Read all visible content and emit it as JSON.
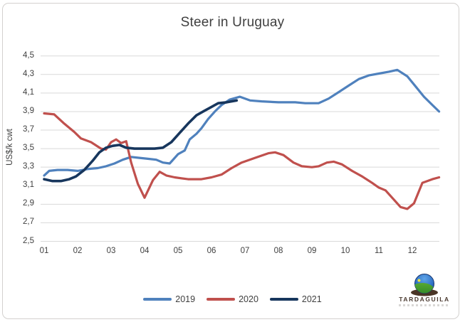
{
  "title": "Steer in Uruguay",
  "y_axis": {
    "title": "US$/k cwt",
    "ticks": [
      {
        "value": 4.5,
        "label": "4,5"
      },
      {
        "value": 4.3,
        "label": "4,3"
      },
      {
        "value": 4.1,
        "label": "4,1"
      },
      {
        "value": 3.9,
        "label": "3,9"
      },
      {
        "value": 3.7,
        "label": "3,7"
      },
      {
        "value": 3.5,
        "label": "3,5"
      },
      {
        "value": 3.3,
        "label": "3,3"
      },
      {
        "value": 3.1,
        "label": "3,1"
      },
      {
        "value": 2.9,
        "label": "2,9"
      },
      {
        "value": 2.7,
        "label": "2,7"
      },
      {
        "value": 2.5,
        "label": "2,5"
      }
    ]
  },
  "x_axis": {
    "ticks": [
      {
        "value": 1,
        "label": "01"
      },
      {
        "value": 2,
        "label": "02"
      },
      {
        "value": 3,
        "label": "03"
      },
      {
        "value": 4,
        "label": "04"
      },
      {
        "value": 5,
        "label": "05"
      },
      {
        "value": 6,
        "label": "06"
      },
      {
        "value": 7,
        "label": "07"
      },
      {
        "value": 8,
        "label": "08"
      },
      {
        "value": 9,
        "label": "09"
      },
      {
        "value": 10,
        "label": "10"
      },
      {
        "value": 11,
        "label": "11"
      },
      {
        "value": 12,
        "label": "12"
      }
    ]
  },
  "legend": [
    {
      "label": "2019",
      "color": "#4F81BD"
    },
    {
      "label": "2020",
      "color": "#C0504D"
    },
    {
      "label": "2021",
      "color": "#17365D"
    }
  ],
  "logo": {
    "name": "TARDAGUILA"
  },
  "colors": {
    "title_text": "#3f3f3f",
    "axis_text": "#3f3f3f",
    "gridline": "#d9d9d9",
    "frame_border": "#d3d1cf",
    "series_2019": "#4F81BD",
    "series_2020": "#C0504D",
    "series_2021": "#17365D"
  },
  "chart_data": {
    "type": "line",
    "title": "Steer in Uruguay",
    "xlabel": "",
    "ylabel": "US$/k cwt",
    "ylim": [
      2.5,
      4.5
    ],
    "xlim": [
      1,
      13
    ],
    "x_unit": "month (01-12), weekly data",
    "grid": "horizontal only",
    "legend_position": "bottom center",
    "series": [
      {
        "name": "2019",
        "color": "#4F81BD",
        "points": [
          [
            1.0,
            3.21
          ],
          [
            1.15,
            3.26
          ],
          [
            1.4,
            3.27
          ],
          [
            1.7,
            3.27
          ],
          [
            2.0,
            3.26
          ],
          [
            2.3,
            3.28
          ],
          [
            2.6,
            3.29
          ],
          [
            2.85,
            3.31
          ],
          [
            3.1,
            3.34
          ],
          [
            3.35,
            3.38
          ],
          [
            3.6,
            3.41
          ],
          [
            3.85,
            3.4
          ],
          [
            4.1,
            3.39
          ],
          [
            4.35,
            3.38
          ],
          [
            4.55,
            3.35
          ],
          [
            4.75,
            3.34
          ],
          [
            5.0,
            3.44
          ],
          [
            5.2,
            3.48
          ],
          [
            5.35,
            3.6
          ],
          [
            5.55,
            3.66
          ],
          [
            5.7,
            3.72
          ],
          [
            5.9,
            3.82
          ],
          [
            6.1,
            3.9
          ],
          [
            6.3,
            3.97
          ],
          [
            6.55,
            4.03
          ],
          [
            6.85,
            4.06
          ],
          [
            7.15,
            4.02
          ],
          [
            7.5,
            4.01
          ],
          [
            8.0,
            4.0
          ],
          [
            8.5,
            4.0
          ],
          [
            8.8,
            3.99
          ],
          [
            9.2,
            3.99
          ],
          [
            9.5,
            4.04
          ],
          [
            9.8,
            4.11
          ],
          [
            10.1,
            4.18
          ],
          [
            10.4,
            4.25
          ],
          [
            10.7,
            4.29
          ],
          [
            11.0,
            4.31
          ],
          [
            11.3,
            4.33
          ],
          [
            11.55,
            4.35
          ],
          [
            11.85,
            4.28
          ],
          [
            12.1,
            4.17
          ],
          [
            12.35,
            4.06
          ],
          [
            12.6,
            3.97
          ],
          [
            12.8,
            3.9
          ]
        ]
      },
      {
        "name": "2020",
        "color": "#C0504D",
        "points": [
          [
            1.0,
            3.88
          ],
          [
            1.3,
            3.87
          ],
          [
            1.6,
            3.77
          ],
          [
            1.9,
            3.68
          ],
          [
            2.1,
            3.61
          ],
          [
            2.4,
            3.57
          ],
          [
            2.7,
            3.5
          ],
          [
            2.85,
            3.49
          ],
          [
            3.0,
            3.57
          ],
          [
            3.15,
            3.6
          ],
          [
            3.3,
            3.56
          ],
          [
            3.45,
            3.58
          ],
          [
            3.6,
            3.35
          ],
          [
            3.8,
            3.12
          ],
          [
            4.0,
            2.97
          ],
          [
            4.25,
            3.16
          ],
          [
            4.45,
            3.25
          ],
          [
            4.65,
            3.21
          ],
          [
            4.9,
            3.19
          ],
          [
            5.3,
            3.17
          ],
          [
            5.7,
            3.17
          ],
          [
            6.0,
            3.19
          ],
          [
            6.3,
            3.22
          ],
          [
            6.6,
            3.29
          ],
          [
            6.9,
            3.35
          ],
          [
            7.3,
            3.4
          ],
          [
            7.7,
            3.45
          ],
          [
            7.9,
            3.46
          ],
          [
            8.15,
            3.43
          ],
          [
            8.45,
            3.35
          ],
          [
            8.7,
            3.31
          ],
          [
            9.0,
            3.3
          ],
          [
            9.2,
            3.31
          ],
          [
            9.45,
            3.35
          ],
          [
            9.65,
            3.36
          ],
          [
            9.9,
            3.33
          ],
          [
            10.2,
            3.26
          ],
          [
            10.5,
            3.2
          ],
          [
            10.8,
            3.13
          ],
          [
            11.0,
            3.08
          ],
          [
            11.2,
            3.05
          ],
          [
            11.45,
            2.95
          ],
          [
            11.65,
            2.87
          ],
          [
            11.85,
            2.85
          ],
          [
            12.05,
            2.91
          ],
          [
            12.3,
            3.13
          ],
          [
            12.6,
            3.17
          ],
          [
            12.8,
            3.19
          ]
        ]
      },
      {
        "name": "2021",
        "color": "#17365D",
        "points": [
          [
            1.0,
            3.17
          ],
          [
            1.25,
            3.15
          ],
          [
            1.5,
            3.15
          ],
          [
            1.75,
            3.17
          ],
          [
            1.95,
            3.2
          ],
          [
            2.2,
            3.27
          ],
          [
            2.45,
            3.37
          ],
          [
            2.65,
            3.46
          ],
          [
            2.85,
            3.51
          ],
          [
            3.05,
            3.53
          ],
          [
            3.25,
            3.54
          ],
          [
            3.45,
            3.51
          ],
          [
            3.7,
            3.5
          ],
          [
            4.0,
            3.5
          ],
          [
            4.3,
            3.5
          ],
          [
            4.55,
            3.51
          ],
          [
            4.8,
            3.57
          ],
          [
            5.05,
            3.67
          ],
          [
            5.3,
            3.77
          ],
          [
            5.55,
            3.86
          ],
          [
            5.8,
            3.91
          ],
          [
            6.0,
            3.95
          ],
          [
            6.2,
            3.99
          ],
          [
            6.45,
            4.0
          ],
          [
            6.75,
            4.02
          ]
        ]
      }
    ]
  }
}
